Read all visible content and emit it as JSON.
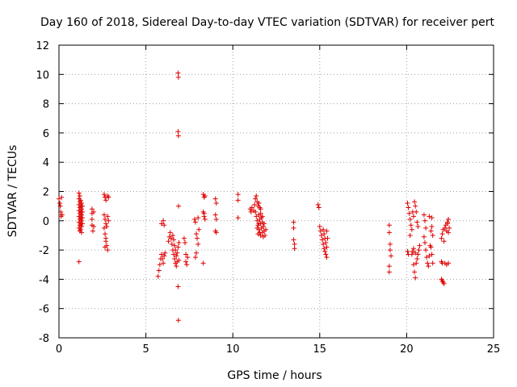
{
  "chart_data": {
    "type": "scatter",
    "title": "Day 160 of 2018, Sidereal Day-to-day VTEC variation (SDTVAR) for receiver pert",
    "xlabel": "GPS time / hours",
    "ylabel": "SDTVAR / TECUs",
    "xlim": [
      0,
      25
    ],
    "ylim": [
      -8,
      12
    ],
    "xticks": [
      0,
      5,
      10,
      15,
      20,
      25
    ],
    "yticks": [
      -8,
      -6,
      -4,
      -2,
      0,
      2,
      4,
      6,
      8,
      10,
      12
    ],
    "xtick_labels": [
      "0",
      "5",
      "10",
      "15",
      "20",
      "25"
    ],
    "ytick_labels": [
      "-8",
      "-6",
      "-4",
      "-2",
      "0",
      "2",
      "4",
      "6",
      "8",
      "10",
      "12"
    ],
    "grid": true,
    "marker": "+",
    "color": "#e00000",
    "series": [
      {
        "name": "SDTVAR",
        "points": [
          [
            0.0,
            1.5
          ],
          [
            0.05,
            1.2
          ],
          [
            0.08,
            1.0
          ],
          [
            0.1,
            0.6
          ],
          [
            0.12,
            0.3
          ],
          [
            0.15,
            1.6
          ],
          [
            0.18,
            0.4
          ],
          [
            1.15,
            1.9
          ],
          [
            1.15,
            1.5
          ],
          [
            1.15,
            1.1
          ],
          [
            1.15,
            0.7
          ],
          [
            1.15,
            0.3
          ],
          [
            1.15,
            -0.1
          ],
          [
            1.15,
            -0.5
          ],
          [
            1.15,
            -2.8
          ],
          [
            1.2,
            1.7
          ],
          [
            1.2,
            1.3
          ],
          [
            1.2,
            0.9
          ],
          [
            1.2,
            0.5
          ],
          [
            1.2,
            0.1
          ],
          [
            1.2,
            -0.3
          ],
          [
            1.2,
            -0.7
          ],
          [
            1.25,
            1.4
          ],
          [
            1.25,
            1.0
          ],
          [
            1.25,
            0.6
          ],
          [
            1.25,
            0.2
          ],
          [
            1.25,
            -0.2
          ],
          [
            1.25,
            -0.6
          ],
          [
            1.3,
            1.2
          ],
          [
            1.3,
            0.8
          ],
          [
            1.3,
            0.4
          ],
          [
            1.3,
            0.0
          ],
          [
            1.3,
            -0.4
          ],
          [
            1.3,
            -0.8
          ],
          [
            1.35,
            1.0
          ],
          [
            1.35,
            0.6
          ],
          [
            1.35,
            0.2
          ],
          [
            1.35,
            -0.2
          ],
          [
            1.9,
            0.8
          ],
          [
            1.9,
            0.5
          ],
          [
            1.9,
            0.1
          ],
          [
            1.9,
            -0.3
          ],
          [
            1.95,
            -0.7
          ],
          [
            2.0,
            0.6
          ],
          [
            2.0,
            -0.4
          ],
          [
            2.6,
            1.8
          ],
          [
            2.65,
            1.6
          ],
          [
            2.7,
            1.4
          ],
          [
            2.6,
            0.4
          ],
          [
            2.65,
            0.1
          ],
          [
            2.7,
            -0.2
          ],
          [
            2.6,
            -0.5
          ],
          [
            2.65,
            -0.9
          ],
          [
            2.7,
            -1.4
          ],
          [
            2.75,
            -1.7
          ],
          [
            2.8,
            -2.0
          ],
          [
            2.8,
            1.7
          ],
          [
            2.8,
            0.3
          ],
          [
            2.75,
            -0.4
          ],
          [
            2.65,
            -1.8
          ],
          [
            2.7,
            -1.2
          ],
          [
            2.85,
            1.6
          ],
          [
            2.85,
            0.0
          ],
          [
            5.7,
            -3.8
          ],
          [
            5.75,
            -3.4
          ],
          [
            5.8,
            -3.0
          ],
          [
            5.85,
            -2.6
          ],
          [
            5.9,
            -2.3
          ],
          [
            5.95,
            -2.6
          ],
          [
            6.0,
            -2.9
          ],
          [
            6.05,
            -2.4
          ],
          [
            6.1,
            -2.2
          ],
          [
            5.9,
            -0.2
          ],
          [
            6.0,
            0.0
          ],
          [
            6.05,
            -0.3
          ],
          [
            6.3,
            -1.4
          ],
          [
            6.35,
            -1.1
          ],
          [
            6.4,
            -0.8
          ],
          [
            6.45,
            -1.2
          ],
          [
            6.5,
            -1.6
          ],
          [
            6.55,
            -2.0
          ],
          [
            6.6,
            -2.3
          ],
          [
            6.65,
            -2.6
          ],
          [
            6.7,
            -2.9
          ],
          [
            6.75,
            -3.1
          ],
          [
            6.8,
            -2.2
          ],
          [
            6.85,
            -1.8
          ],
          [
            6.9,
            -1.5
          ],
          [
            6.9,
            -2.7
          ],
          [
            6.55,
            -1.0
          ],
          [
            6.6,
            -1.3
          ],
          [
            6.65,
            -1.7
          ],
          [
            6.7,
            -2.0
          ],
          [
            6.75,
            -2.4
          ],
          [
            6.8,
            -2.8
          ],
          [
            6.85,
            10.1
          ],
          [
            6.87,
            9.8
          ],
          [
            6.85,
            6.1
          ],
          [
            6.87,
            5.8
          ],
          [
            6.88,
            1.0
          ],
          [
            6.85,
            -4.5
          ],
          [
            6.87,
            -6.8
          ],
          [
            7.2,
            -1.2
          ],
          [
            7.25,
            -1.5
          ],
          [
            7.3,
            -2.3
          ],
          [
            7.3,
            -2.8
          ],
          [
            7.35,
            -3.0
          ],
          [
            7.4,
            -2.5
          ],
          [
            7.8,
            0.1
          ],
          [
            7.85,
            -0.1
          ],
          [
            7.9,
            -0.9
          ],
          [
            7.95,
            -1.2
          ],
          [
            8.0,
            -1.6
          ],
          [
            7.85,
            -2.5
          ],
          [
            7.9,
            -2.2
          ],
          [
            8.0,
            0.2
          ],
          [
            8.05,
            -0.6
          ],
          [
            8.3,
            1.8
          ],
          [
            8.35,
            1.6
          ],
          [
            8.4,
            1.7
          ],
          [
            8.3,
            0.6
          ],
          [
            8.35,
            0.3
          ],
          [
            8.4,
            0.1
          ],
          [
            8.35,
            0.5
          ],
          [
            8.3,
            -2.9
          ],
          [
            9.0,
            1.5
          ],
          [
            9.05,
            1.2
          ],
          [
            9.0,
            0.4
          ],
          [
            9.05,
            0.1
          ],
          [
            9.0,
            -0.7
          ],
          [
            9.05,
            -0.8
          ],
          [
            10.3,
            1.8
          ],
          [
            10.3,
            1.4
          ],
          [
            10.3,
            0.2
          ],
          [
            11.0,
            0.8
          ],
          [
            11.05,
            0.6
          ],
          [
            11.1,
            0.9
          ],
          [
            11.2,
            0.7
          ],
          [
            11.25,
            1.1
          ],
          [
            11.3,
            1.5
          ],
          [
            11.35,
            1.7
          ],
          [
            11.4,
            1.3
          ],
          [
            11.45,
            1.0
          ],
          [
            11.3,
            0.6
          ],
          [
            11.35,
            0.3
          ],
          [
            11.4,
            0.0
          ],
          [
            11.45,
            -0.3
          ],
          [
            11.5,
            -0.6
          ],
          [
            11.55,
            -0.8
          ],
          [
            11.6,
            -1.0
          ],
          [
            11.5,
            1.2
          ],
          [
            11.55,
            0.9
          ],
          [
            11.6,
            0.5
          ],
          [
            11.65,
            0.2
          ],
          [
            11.7,
            -0.1
          ],
          [
            11.75,
            -0.4
          ],
          [
            11.8,
            -0.7
          ],
          [
            11.85,
            -1.0
          ],
          [
            11.5,
            0.4
          ],
          [
            11.55,
            0.1
          ],
          [
            11.6,
            -0.2
          ],
          [
            11.65,
            -0.5
          ],
          [
            11.7,
            -0.8
          ],
          [
            11.75,
            -1.1
          ],
          [
            11.4,
            -0.5
          ],
          [
            11.45,
            -0.9
          ],
          [
            11.5,
            -0.2
          ],
          [
            11.6,
            0.8
          ],
          [
            11.7,
            0.3
          ],
          [
            11.8,
            -0.2
          ],
          [
            11.9,
            -0.6
          ],
          [
            13.5,
            -0.1
          ],
          [
            13.5,
            -0.5
          ],
          [
            13.5,
            -1.3
          ],
          [
            13.55,
            -1.6
          ],
          [
            13.55,
            -1.9
          ],
          [
            14.9,
            1.1
          ],
          [
            14.95,
            0.9
          ],
          [
            15.0,
            -0.4
          ],
          [
            15.05,
            -0.7
          ],
          [
            15.1,
            -1.0
          ],
          [
            15.15,
            -1.3
          ],
          [
            15.2,
            -1.6
          ],
          [
            15.25,
            -1.9
          ],
          [
            15.3,
            -2.1
          ],
          [
            15.35,
            -2.3
          ],
          [
            15.4,
            -2.5
          ],
          [
            15.2,
            -0.6
          ],
          [
            15.25,
            -0.9
          ],
          [
            15.3,
            -1.2
          ],
          [
            15.35,
            -1.5
          ],
          [
            15.4,
            -1.8
          ],
          [
            15.45,
            -1.2
          ],
          [
            15.4,
            -0.7
          ],
          [
            19.0,
            -0.3
          ],
          [
            19.0,
            -0.8
          ],
          [
            19.05,
            -1.6
          ],
          [
            19.05,
            -2.0
          ],
          [
            19.1,
            -2.4
          ],
          [
            19.0,
            -3.1
          ],
          [
            19.0,
            -3.5
          ],
          [
            20.05,
            1.2
          ],
          [
            20.1,
            0.9
          ],
          [
            20.15,
            0.5
          ],
          [
            20.2,
            0.1
          ],
          [
            20.25,
            -0.3
          ],
          [
            20.05,
            -2.1
          ],
          [
            20.1,
            -2.3
          ],
          [
            20.2,
            -1.0
          ],
          [
            20.3,
            -0.6
          ],
          [
            20.35,
            0.6
          ],
          [
            20.4,
            0.3
          ],
          [
            20.45,
            1.3
          ],
          [
            20.5,
            1.0
          ],
          [
            20.55,
            0.6
          ],
          [
            20.6,
            -0.1
          ],
          [
            20.65,
            -0.4
          ],
          [
            20.4,
            -3.0
          ],
          [
            20.45,
            -3.5
          ],
          [
            20.5,
            -3.9
          ],
          [
            20.55,
            -2.9
          ],
          [
            20.6,
            -2.6
          ],
          [
            20.65,
            -2.3
          ],
          [
            20.7,
            -2.0
          ],
          [
            20.75,
            -1.7
          ],
          [
            20.3,
            -2.3
          ],
          [
            20.35,
            -2.1
          ],
          [
            20.4,
            -1.9
          ],
          [
            20.5,
            -2.2
          ],
          [
            21.0,
            0.4
          ],
          [
            21.05,
            0.0
          ],
          [
            21.1,
            -0.5
          ],
          [
            21.0,
            -1.1
          ],
          [
            21.05,
            -1.5
          ],
          [
            21.1,
            -2.0
          ],
          [
            21.15,
            -2.5
          ],
          [
            21.2,
            -2.9
          ],
          [
            21.25,
            -3.1
          ],
          [
            21.3,
            -2.4
          ],
          [
            21.35,
            -1.7
          ],
          [
            21.4,
            -0.7
          ],
          [
            21.45,
            -0.4
          ],
          [
            21.45,
            0.2
          ],
          [
            21.5,
            -1.0
          ],
          [
            21.3,
            0.3
          ],
          [
            21.4,
            -1.8
          ],
          [
            21.45,
            -2.3
          ],
          [
            21.5,
            -2.9
          ],
          [
            22.0,
            -2.8
          ],
          [
            22.05,
            -2.9
          ],
          [
            22.0,
            -4.0
          ],
          [
            22.05,
            -4.1
          ],
          [
            22.1,
            -4.2
          ],
          [
            22.15,
            -4.3
          ],
          [
            22.0,
            -1.2
          ],
          [
            22.05,
            -0.9
          ],
          [
            22.1,
            -0.6
          ],
          [
            22.15,
            -1.4
          ],
          [
            22.2,
            -0.5
          ],
          [
            22.25,
            -0.3
          ],
          [
            22.3,
            -0.7
          ],
          [
            22.35,
            -0.2
          ],
          [
            22.4,
            -0.8
          ],
          [
            22.45,
            -0.5
          ],
          [
            22.2,
            -2.9
          ],
          [
            22.3,
            -3.0
          ],
          [
            22.4,
            -2.9
          ],
          [
            22.35,
            -0.1
          ],
          [
            22.4,
            0.1
          ]
        ]
      }
    ]
  }
}
